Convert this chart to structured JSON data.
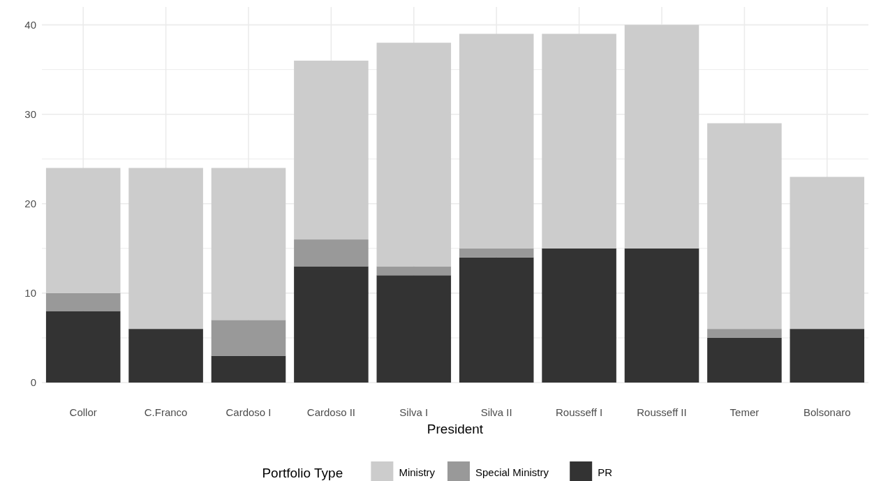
{
  "chart_data": {
    "type": "bar",
    "stacked": true,
    "xlabel": "President",
    "legend_title": "Portfolio Type",
    "legend": "bottom",
    "grid": true,
    "categories": [
      "Collor",
      "C.Franco",
      "Cardoso I",
      "Cardoso II",
      "Silva I",
      "Silva II",
      "Rousseff I",
      "Rousseff II",
      "Temer",
      "Bolsonaro"
    ],
    "series": [
      {
        "name": "PR",
        "color": "#333333",
        "values": [
          8,
          6,
          3,
          13,
          12,
          14,
          15,
          15,
          5,
          6
        ]
      },
      {
        "name": "Special Ministry",
        "color": "#999999",
        "values": [
          2,
          0,
          4,
          3,
          1,
          1,
          0,
          0,
          1,
          0
        ]
      },
      {
        "name": "Ministry",
        "color": "#cccccc",
        "values": [
          14,
          18,
          17,
          20,
          25,
          24,
          24,
          25,
          23,
          17
        ]
      }
    ],
    "ylim": [
      0,
      42
    ],
    "yticks": [
      0,
      {
        "value": 5,
        "label": null
      },
      10,
      {
        "value": 15,
        "label": null
      },
      20,
      {
        "value": 25,
        "label": null
      },
      30,
      {
        "value": 35,
        "label": null
      },
      40
    ]
  }
}
